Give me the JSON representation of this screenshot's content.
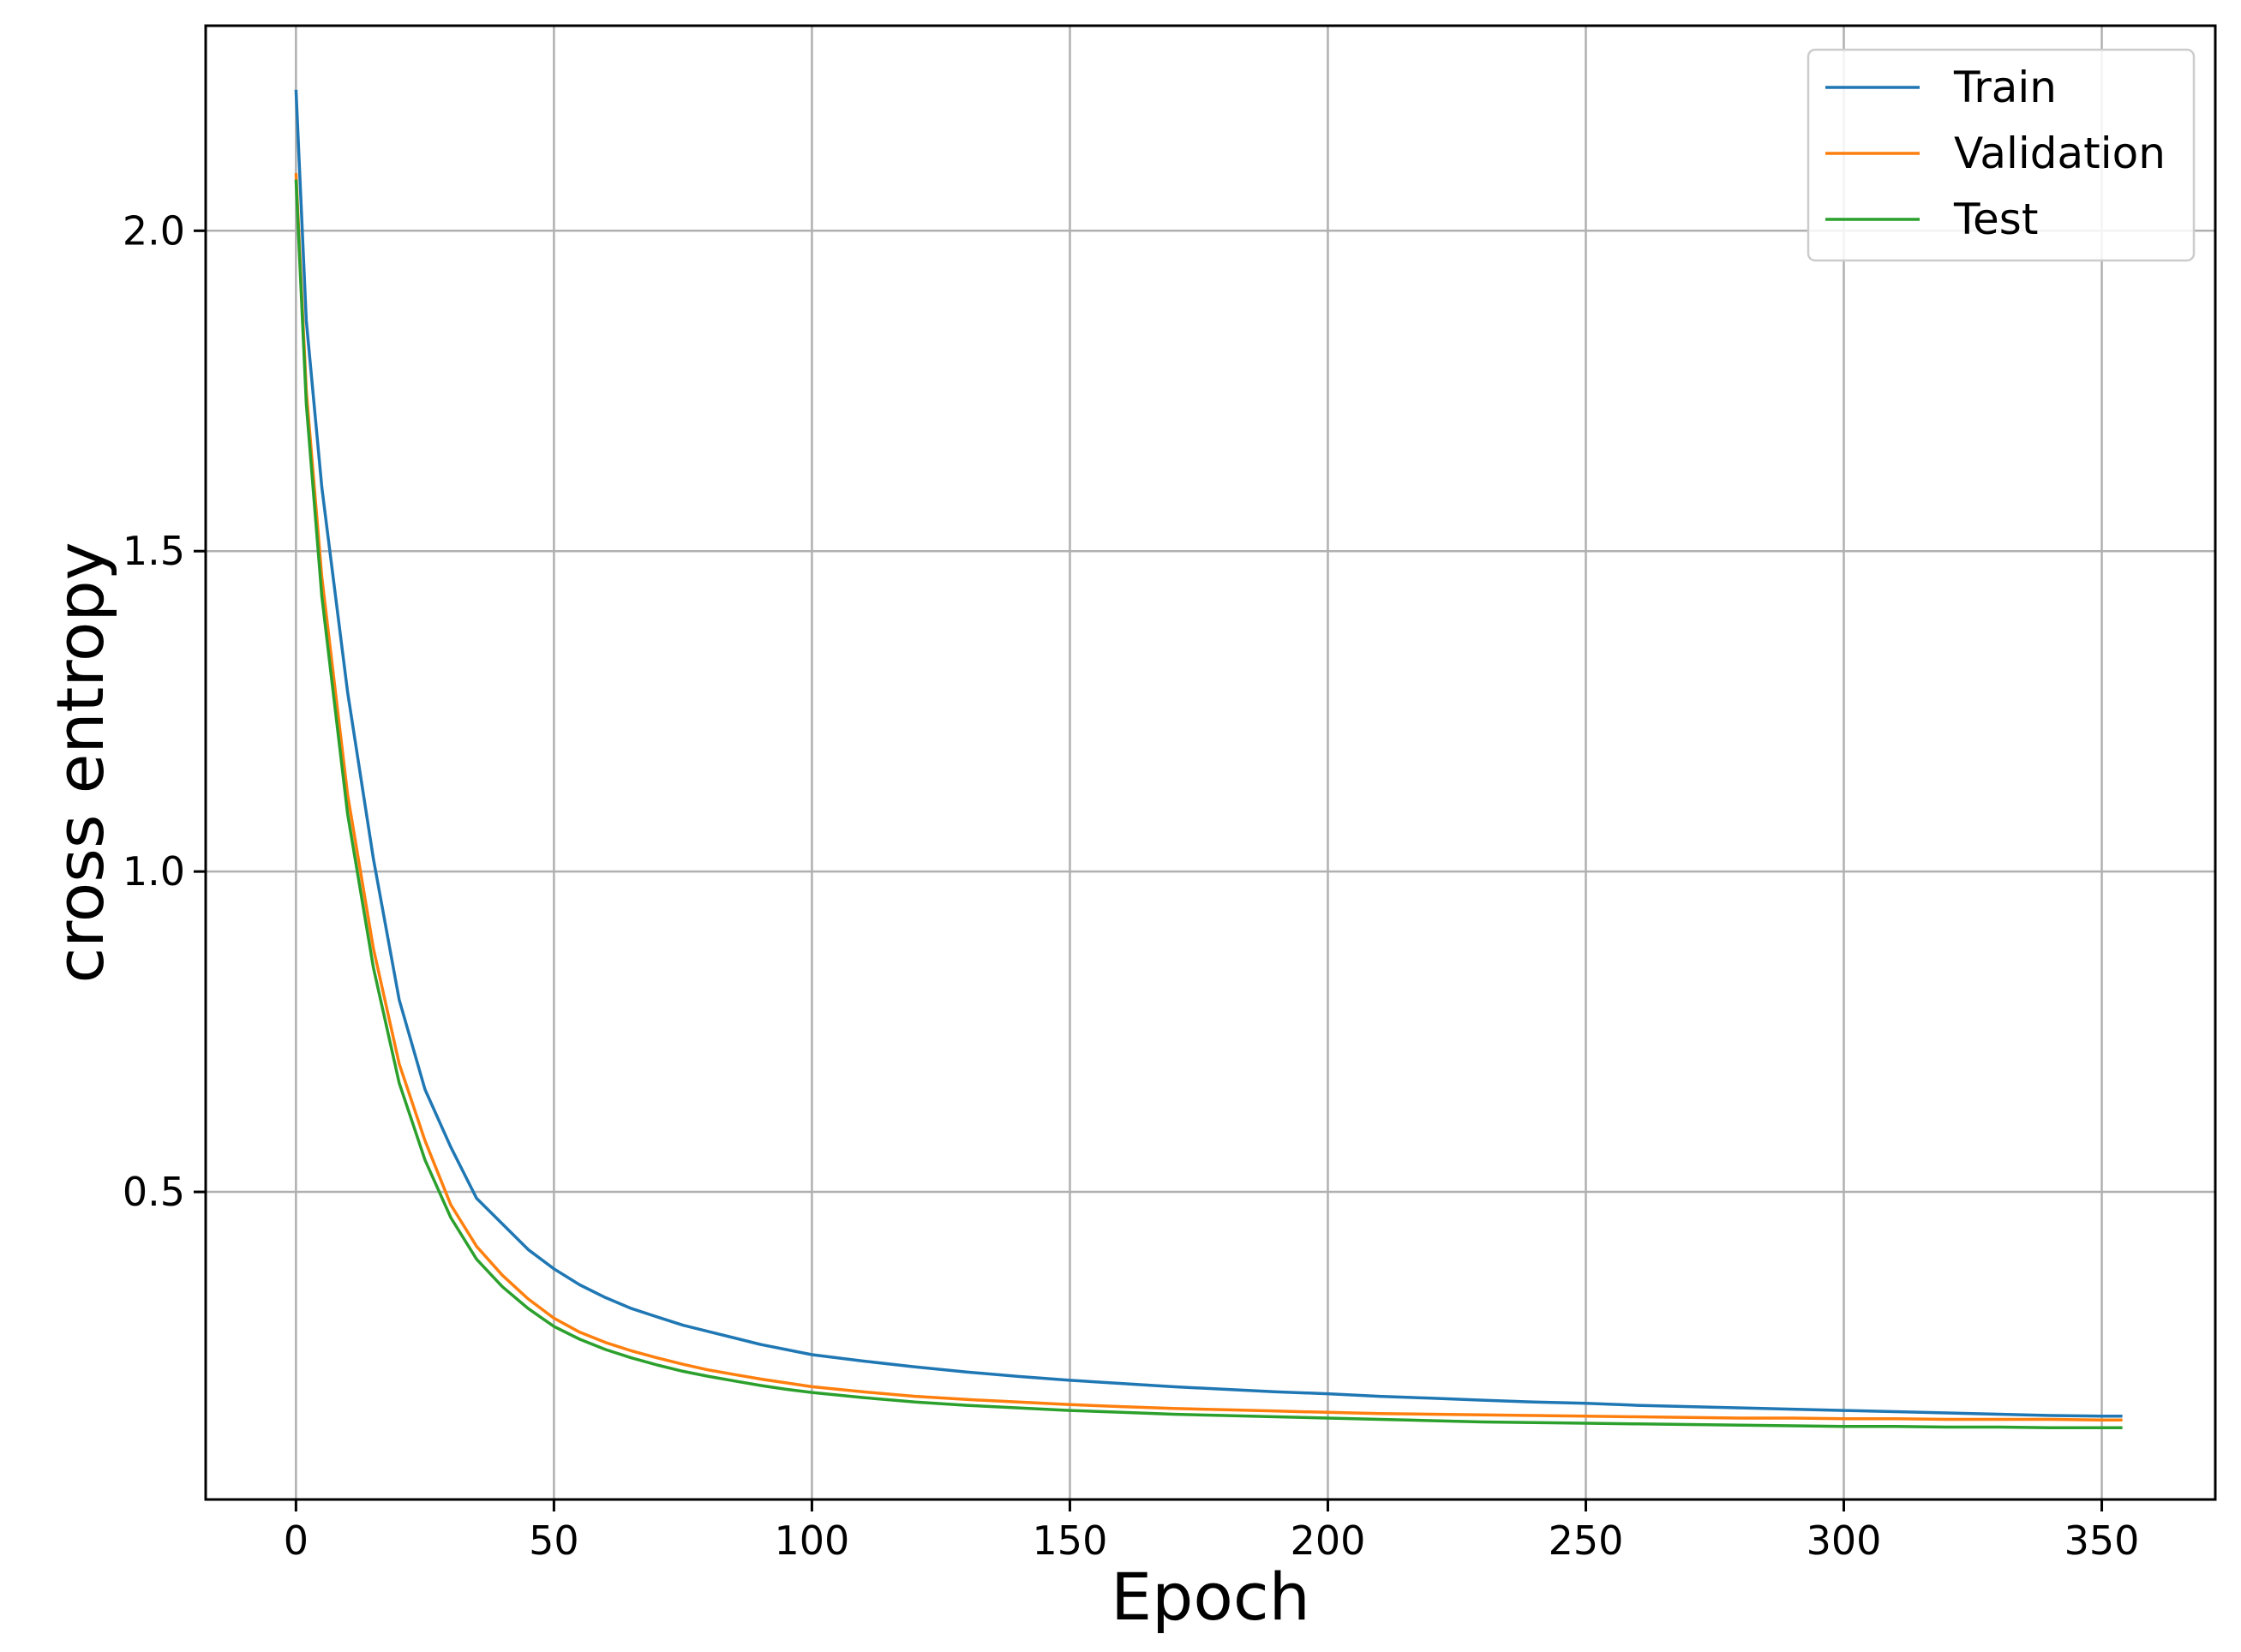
{
  "chart_data": {
    "type": "line",
    "title": "",
    "xlabel": "Epoch",
    "ylabel": "cross entropy",
    "xlim": [
      -17.5,
      372
    ],
    "ylim": [
      0.02,
      2.32
    ],
    "x_ticks": [
      0,
      50,
      100,
      150,
      200,
      250,
      300,
      350
    ],
    "x_tick_labels": [
      "0",
      "50",
      "100",
      "150",
      "200",
      "250",
      "300",
      "350"
    ],
    "y_ticks": [
      0.5,
      1.0,
      1.5,
      2.0
    ],
    "y_tick_labels": [
      "0.5",
      "1.0",
      "1.5",
      "2.0"
    ],
    "grid": true,
    "legend_position": "top-right",
    "series": [
      {
        "name": "Train",
        "color": "#1f77b4",
        "x": [
          0,
          2,
          5,
          10,
          15,
          20,
          25,
          30,
          35,
          40,
          45,
          50,
          55,
          60,
          65,
          70,
          75,
          80,
          85,
          90,
          95,
          100,
          110,
          120,
          130,
          140,
          150,
          160,
          170,
          180,
          190,
          200,
          210,
          220,
          230,
          240,
          250,
          260,
          270,
          280,
          290,
          300,
          310,
          320,
          330,
          340,
          350,
          354
        ],
        "y": [
          2.22,
          1.86,
          1.6,
          1.28,
          1.02,
          0.8,
          0.66,
          0.57,
          0.49,
          0.45,
          0.41,
          0.38,
          0.355,
          0.335,
          0.318,
          0.305,
          0.292,
          0.282,
          0.272,
          0.262,
          0.254,
          0.246,
          0.236,
          0.227,
          0.219,
          0.212,
          0.206,
          0.201,
          0.196,
          0.192,
          0.188,
          0.185,
          0.181,
          0.178,
          0.175,
          0.172,
          0.17,
          0.167,
          0.165,
          0.163,
          0.161,
          0.159,
          0.157,
          0.155,
          0.153,
          0.151,
          0.15,
          0.15
        ]
      },
      {
        "name": "Validation",
        "color": "#ff7f0e",
        "x": [
          0,
          2,
          5,
          10,
          15,
          20,
          25,
          30,
          35,
          40,
          45,
          50,
          55,
          60,
          65,
          70,
          75,
          80,
          85,
          90,
          95,
          100,
          110,
          120,
          130,
          140,
          150,
          160,
          170,
          180,
          190,
          200,
          210,
          220,
          230,
          240,
          250,
          260,
          270,
          280,
          290,
          300,
          310,
          320,
          330,
          340,
          350,
          354
        ],
        "y": [
          2.09,
          1.75,
          1.46,
          1.12,
          0.88,
          0.7,
          0.58,
          0.48,
          0.415,
          0.37,
          0.333,
          0.303,
          0.281,
          0.265,
          0.252,
          0.241,
          0.231,
          0.222,
          0.215,
          0.208,
          0.202,
          0.196,
          0.188,
          0.181,
          0.176,
          0.172,
          0.168,
          0.165,
          0.162,
          0.16,
          0.158,
          0.156,
          0.154,
          0.153,
          0.152,
          0.151,
          0.15,
          0.149,
          0.148,
          0.147,
          0.147,
          0.146,
          0.146,
          0.145,
          0.145,
          0.145,
          0.144,
          0.144
        ]
      },
      {
        "name": "Test",
        "color": "#2ca02c",
        "x": [
          0,
          2,
          5,
          10,
          15,
          20,
          25,
          30,
          35,
          40,
          45,
          50,
          55,
          60,
          65,
          70,
          75,
          80,
          85,
          90,
          95,
          100,
          110,
          120,
          130,
          140,
          150,
          160,
          170,
          180,
          190,
          200,
          210,
          220,
          230,
          240,
          250,
          260,
          270,
          280,
          290,
          300,
          310,
          320,
          330,
          340,
          350,
          354
        ],
        "y": [
          2.08,
          1.73,
          1.43,
          1.09,
          0.85,
          0.67,
          0.55,
          0.46,
          0.395,
          0.352,
          0.318,
          0.29,
          0.27,
          0.254,
          0.241,
          0.23,
          0.22,
          0.212,
          0.205,
          0.198,
          0.192,
          0.187,
          0.179,
          0.172,
          0.167,
          0.163,
          0.159,
          0.156,
          0.153,
          0.151,
          0.149,
          0.147,
          0.145,
          0.143,
          0.141,
          0.14,
          0.139,
          0.138,
          0.137,
          0.136,
          0.135,
          0.134,
          0.134,
          0.133,
          0.133,
          0.132,
          0.132,
          0.132
        ]
      }
    ]
  }
}
